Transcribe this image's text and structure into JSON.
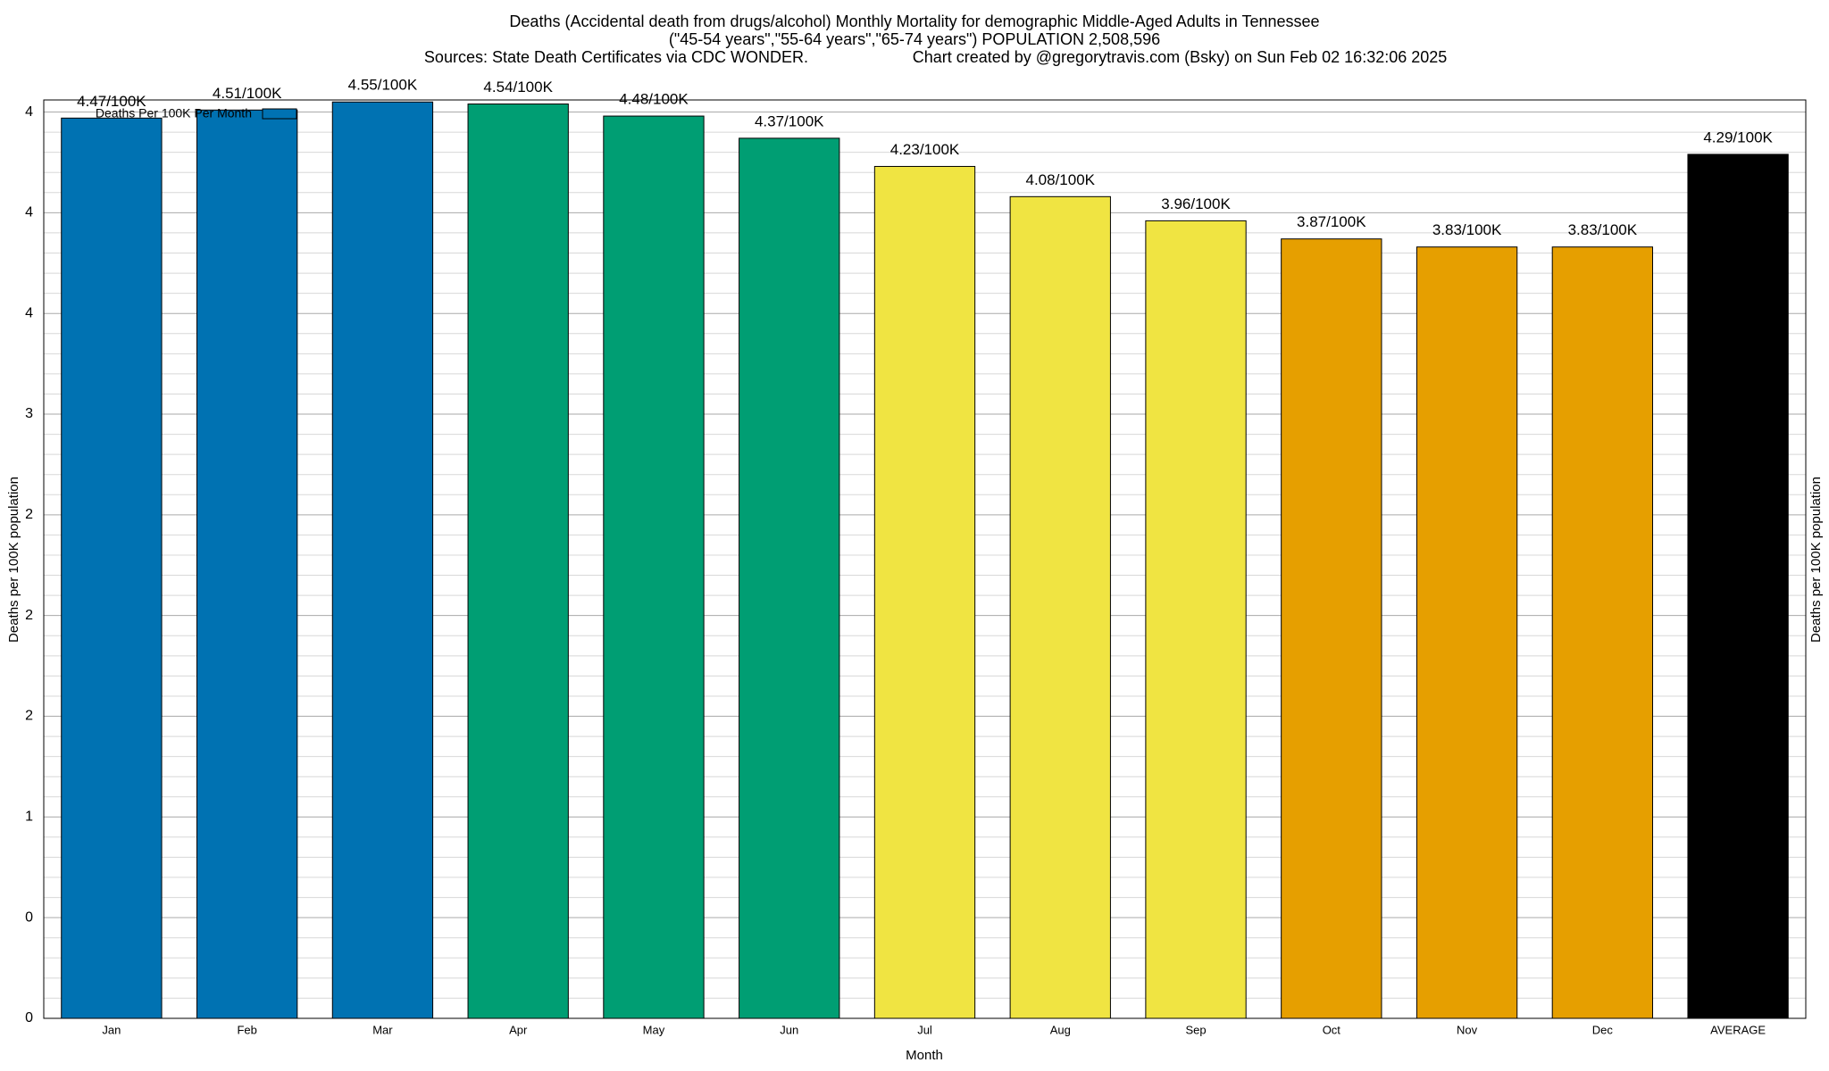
{
  "chart_data": {
    "type": "bar",
    "title": "Deaths (Accidental death from drugs/alcohol) Monthly Mortality for demographic Middle-Aged Adults in Tennessee",
    "subtitle": "(\"45-54 years\",\"55-64 years\",\"65-74 years\") POPULATION 2,508,596",
    "source": "Sources: State Death Certificates via CDC WONDER.",
    "credit": "Chart created by @gregorytravis.com (Bsky) on Sun Feb 02 16:32:06 2025",
    "x_label": "Month",
    "y_label": "Deaths per 100K population",
    "y2_label": "Deaths per 100K population",
    "legend": "Deaths Per 100K Per Month",
    "legend_color": "#0072b2",
    "categories": [
      "Jan",
      "Feb",
      "Mar",
      "Apr",
      "May",
      "Jun",
      "Jul",
      "Aug",
      "Sep",
      "Oct",
      "Nov",
      "Dec",
      "AVERAGE"
    ],
    "values": [
      4.47,
      4.51,
      4.55,
      4.54,
      4.48,
      4.37,
      4.23,
      4.08,
      3.96,
      3.87,
      3.83,
      3.83,
      4.29
    ],
    "value_labels": [
      "4.47/100K",
      "4.51/100K",
      "4.55/100K",
      "4.54/100K",
      "4.48/100K",
      "4.37/100K",
      "4.23/100K",
      "4.08/100K",
      "3.96/100K",
      "3.87/100K",
      "3.83/100K",
      "3.83/100K",
      "4.29/100K"
    ],
    "colors": [
      "#0072b2",
      "#0072b2",
      "#0072b2",
      "#009e73",
      "#009e73",
      "#009e73",
      "#f0e442",
      "#f0e442",
      "#f0e442",
      "#e69f00",
      "#e69f00",
      "#e69f00",
      "#000000"
    ],
    "ylim": [
      0,
      4.56
    ],
    "yticks": [
      0,
      {
        "value": 0.5,
        "label": "0"
      },
      1,
      {
        "value": 1.5,
        "label": "2"
      },
      2,
      {
        "value": 2.5,
        "label": "2"
      },
      3,
      {
        "value": 3.5,
        "label": "4"
      },
      4,
      {
        "value": 4.5,
        "label": "4"
      }
    ],
    "grid": true,
    "minor_grid": true
  }
}
